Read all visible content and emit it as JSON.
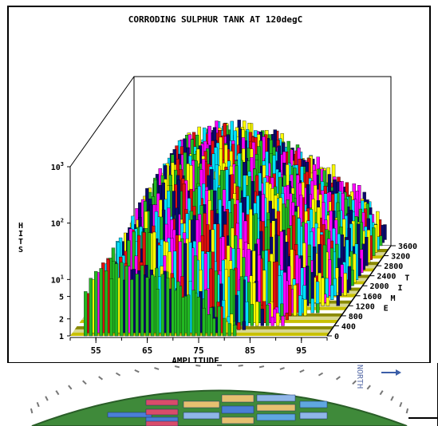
{
  "chart_data": {
    "type": "bar3d",
    "title": "CORRODING SULPHUR TANK AT 120degC",
    "xlabel": "AMPLITUDE",
    "ylabel": "HITS",
    "zlabel": "TIME",
    "x_ticks": [
      55,
      65,
      75,
      85,
      95
    ],
    "y_ticks": [
      "1",
      "2",
      "5",
      "10^1",
      "10^2",
      "10^3"
    ],
    "y_scale": "log",
    "z_ticks": [
      0,
      400,
      800,
      1200,
      1600,
      2000,
      2400,
      2800,
      3200,
      3600
    ],
    "xlim": [
      50,
      100
    ],
    "ylim": [
      1,
      1000
    ],
    "zlim": [
      0,
      3600
    ],
    "bar_colors": [
      "#22b822",
      "#e01010",
      "#ffff00",
      "#00e0ff",
      "#0a0a6e",
      "#ff00ff"
    ],
    "floor_stripe_colors": [
      "#c8c000",
      "#d7d790",
      "#8a8a00",
      "#ffffff"
    ],
    "series": [
      {
        "time": 0,
        "peak_amplitude": 58,
        "peak_hits": 18,
        "color": "#22b822"
      },
      {
        "time": 400,
        "peak_amplitude": 61,
        "peak_hits": 40,
        "color": "#e01010"
      },
      {
        "time": 800,
        "peak_amplitude": 63,
        "peak_hits": 80,
        "color": "#ffff00"
      },
      {
        "time": 1200,
        "peak_amplitude": 64,
        "peak_hits": 150,
        "color": "#e01010"
      },
      {
        "time": 1600,
        "peak_amplitude": 65,
        "peak_hits": 220,
        "color": "#22b822"
      },
      {
        "time": 2000,
        "peak_amplitude": 66,
        "peak_hits": 280,
        "color": "#00e0ff"
      },
      {
        "time": 2400,
        "peak_amplitude": 66,
        "peak_hits": 300,
        "color": "#ffff00"
      },
      {
        "time": 2800,
        "peak_amplitude": 67,
        "peak_hits": 260,
        "color": "#e01010"
      },
      {
        "time": 3200,
        "peak_amplitude": 67,
        "peak_hits": 180,
        "color": "#0a0a6e"
      },
      {
        "time": 3600,
        "peak_amplitude": 68,
        "peak_hits": 100,
        "color": "#22b822"
      }
    ]
  },
  "lower_figure": {
    "north_label": "NORTH",
    "dome_color": "#3f8a3a",
    "tile_colors": [
      "#4a7fd6",
      "#e6c070",
      "#d94c6a",
      "#8fb6e8",
      "#5fa7e0"
    ]
  }
}
